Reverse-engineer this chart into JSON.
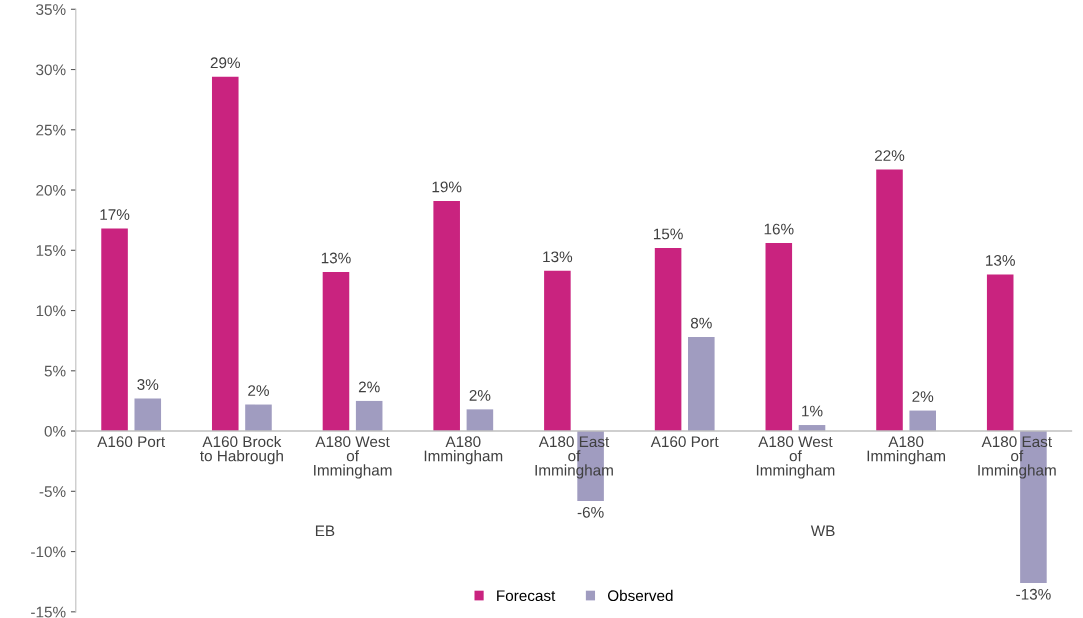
{
  "chart_data": {
    "type": "bar",
    "categories": [
      "A160 Port",
      "A160 Brock\nto Habrough",
      "A180 West\nof\nImmingham",
      "A180\nImmingham",
      "A180 East\nof\nImmingham",
      "A160 Port",
      "A180 West\nof\nImmingham",
      "A180\nImmingham",
      "A180 East\nof\nImmingham"
    ],
    "series": [
      {
        "name": "Forecast",
        "color": "#c9237f",
        "values": [
          16.8,
          29.4,
          13.2,
          19.1,
          13.3,
          15.2,
          15.6,
          21.7,
          13.0
        ],
        "value_labels": [
          "17%",
          "29%",
          "13%",
          "19%",
          "13%",
          "15%",
          "16%",
          "22%",
          "13%"
        ]
      },
      {
        "name": "Observed",
        "color": "#a09cc0",
        "values": [
          2.7,
          2.2,
          2.5,
          1.8,
          -5.8,
          7.8,
          0.5,
          1.7,
          -12.6
        ],
        "value_labels": [
          "3%",
          "2%",
          "2%",
          "2%",
          "-6%",
          "8%",
          "1%",
          "2%",
          "-13%"
        ]
      }
    ],
    "annotations": [
      "EB",
      "WB"
    ],
    "ylim": [
      -15,
      35
    ],
    "yticks": [
      {
        "value": -15,
        "label": "-15%"
      },
      {
        "value": -10,
        "label": "-10%"
      },
      {
        "value": -5,
        "label": "-5%"
      },
      {
        "value": 0,
        "label": "0%"
      },
      {
        "value": 5,
        "label": "5%"
      },
      {
        "value": 10,
        "label": "10%"
      },
      {
        "value": 15,
        "label": "15%"
      },
      {
        "value": 20,
        "label": "20%"
      },
      {
        "value": 25,
        "label": "25%"
      },
      {
        "value": 30,
        "label": "30%"
      },
      {
        "value": 35,
        "label": "35%"
      }
    ],
    "grid": false,
    "legend": "bottom"
  }
}
